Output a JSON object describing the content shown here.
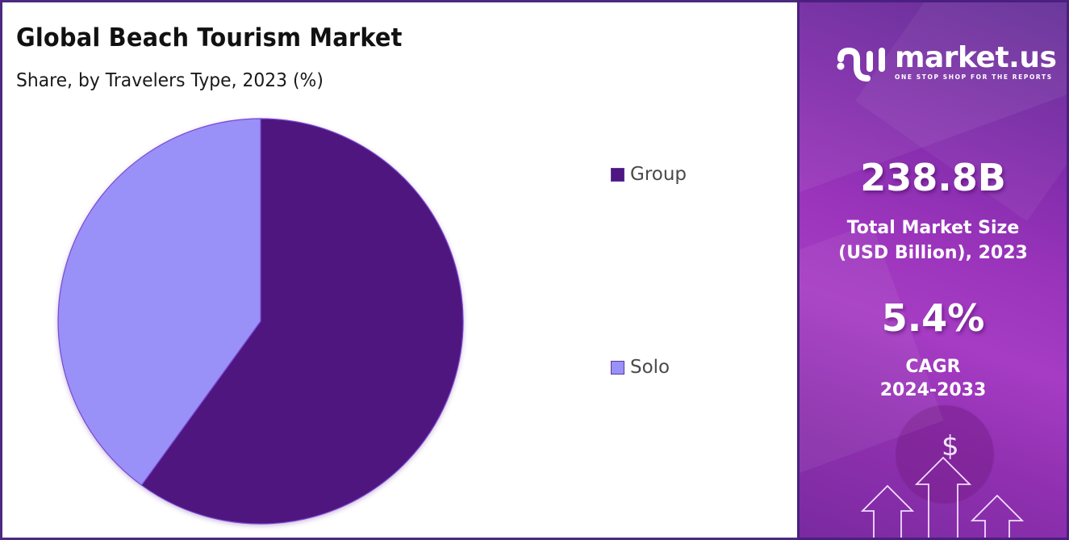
{
  "header": {
    "title": "Global Beach Tourism Market",
    "subtitle": "Share, by Travelers Type, 2023 (%)"
  },
  "legend": [
    {
      "label": "Group",
      "color": "#4f1580"
    },
    {
      "label": "Solo",
      "color": "#9990f8"
    }
  ],
  "brand": {
    "name": "market.us",
    "tagline": "ONE STOP SHOP FOR THE REPORTS",
    "logo_icon": "market-us-logo-icon"
  },
  "stats": {
    "market_size_value": "238.8B",
    "market_size_label_line1": "Total Market Size",
    "market_size_label_line2": "(USD Billion), 2023",
    "cagr_value": "5.4%",
    "cagr_label_line1": "CAGR",
    "cagr_label_line2": "2024-2033"
  },
  "decor": {
    "dollar_symbol": "$",
    "growth_arrows_icon": "growth-arrows-icon"
  },
  "colors": {
    "group": "#4f1580",
    "solo": "#9990f8",
    "frame": "#4b2a7f",
    "panel_purple": "#9a34bb"
  },
  "chart_data": {
    "type": "pie",
    "title": "Global Beach Tourism Market",
    "subtitle": "Share, by Travelers Type, 2023 (%)",
    "categories": [
      "Group",
      "Solo"
    ],
    "values": [
      60,
      40
    ],
    "colors": [
      "#4f1580",
      "#9990f8"
    ],
    "start_angle_deg": 0,
    "direction": "clockwise",
    "legend_position": "right",
    "data_labels": false
  }
}
